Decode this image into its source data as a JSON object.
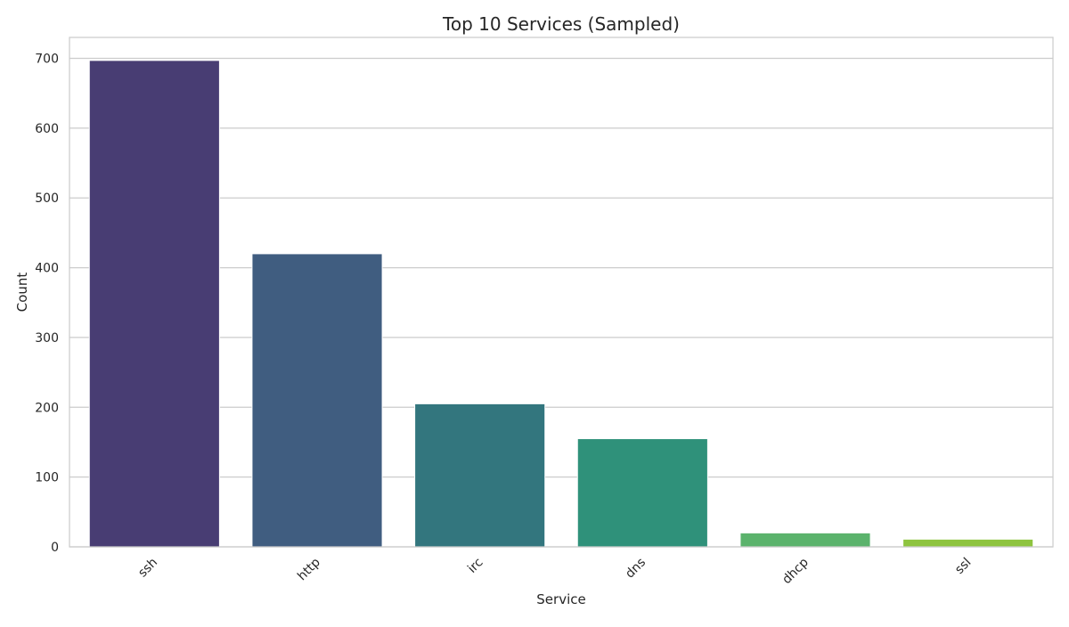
{
  "chart_data": {
    "type": "bar",
    "title": "Top 10 Services (Sampled)",
    "xlabel": "Service",
    "ylabel": "Count",
    "categories": [
      "ssh",
      "http",
      "irc",
      "dns",
      "dhcp",
      "ssl"
    ],
    "values": [
      697,
      420,
      205,
      155,
      20,
      11
    ],
    "colors": [
      "#483d73",
      "#405d80",
      "#33767e",
      "#2f917a",
      "#5bb36c",
      "#8ec43f"
    ],
    "ylim": [
      0,
      730
    ],
    "yticks": [
      0,
      100,
      200,
      300,
      400,
      500,
      600,
      700
    ],
    "grid": "horizontal",
    "legend": "none"
  }
}
